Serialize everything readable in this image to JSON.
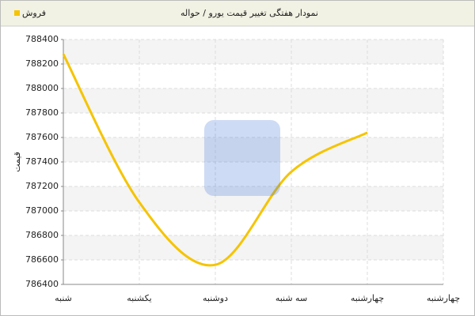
{
  "chart_data": {
    "type": "line",
    "title": "نمودار هفتگی تغییر قیمت یورو / حواله",
    "y_label": "قیمت",
    "categories": [
      "شنبه",
      "یکشنبه",
      "دوشنبه",
      "سه شنبه",
      "چهارشنبه",
      "چهارشنبه"
    ],
    "series": [
      {
        "name": "فروش",
        "color": "#f5c400",
        "values": [
          788280,
          787070,
          786560,
          787320,
          787640,
          null
        ]
      }
    ],
    "ylim": [
      786400,
      788400
    ],
    "yticks": [
      786400,
      786600,
      786800,
      787000,
      787200,
      787400,
      787600,
      787800,
      788000,
      788200,
      788400
    ],
    "grid": true,
    "legend": "top-left"
  }
}
